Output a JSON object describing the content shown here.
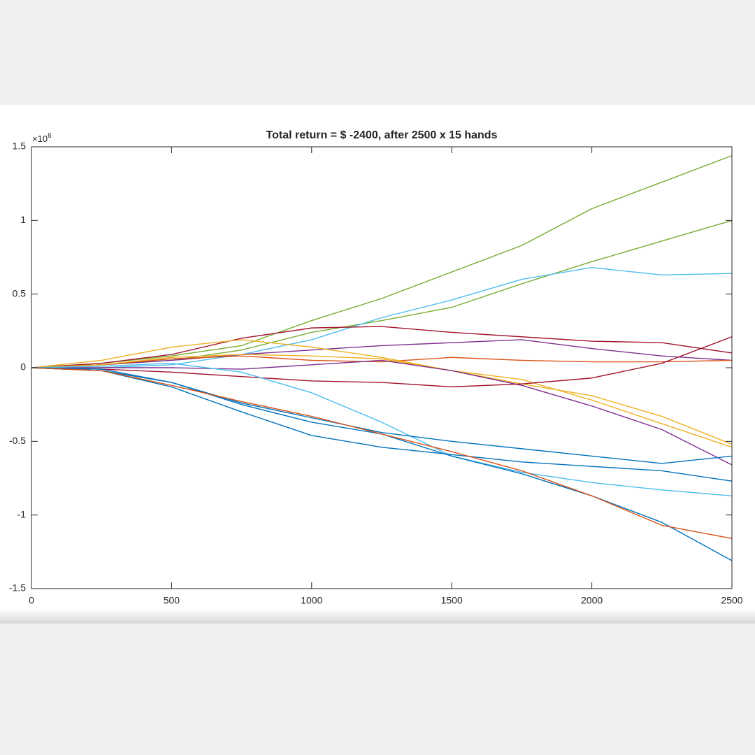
{
  "chart_data": {
    "type": "line",
    "title": "Total return = $ -2400, after 2500 x 15 hands",
    "y_multiplier": {
      "base": "×10",
      "power": "6"
    },
    "x": [
      0,
      250,
      500,
      750,
      1000,
      1250,
      1500,
      1750,
      2000,
      2250,
      2500
    ],
    "xlim": [
      0,
      2500
    ],
    "xticks": [
      0,
      500,
      1000,
      1500,
      2000,
      2500
    ],
    "ylim": [
      -1.5,
      1.5
    ],
    "yticks": [
      -1.5,
      -1,
      -0.5,
      0,
      0.5,
      1,
      1.5
    ],
    "grid": false,
    "series": [
      {
        "color": "#77AC30",
        "values": [
          0,
          0.03,
          0.08,
          0.15,
          0.32,
          0.47,
          0.65,
          0.83,
          1.08,
          1.26,
          1.44
        ]
      },
      {
        "color": "#77AC30",
        "values": [
          0,
          0.02,
          0.05,
          0.12,
          0.24,
          0.32,
          0.41,
          0.57,
          0.72,
          0.86,
          1.0
        ]
      },
      {
        "color": "#4DBEEE",
        "values": [
          0,
          0.0,
          0.02,
          0.09,
          0.19,
          0.34,
          0.46,
          0.6,
          0.68,
          0.63,
          0.64
        ]
      },
      {
        "color": "#A2142F",
        "values": [
          0,
          0.03,
          0.09,
          0.2,
          0.27,
          0.28,
          0.24,
          0.21,
          0.18,
          0.17,
          0.1
        ]
      },
      {
        "color": "#7E2F8E",
        "values": [
          0,
          0.02,
          0.05,
          0.09,
          0.12,
          0.15,
          0.17,
          0.19,
          0.13,
          0.08,
          0.05
        ]
      },
      {
        "color": "#D95319",
        "values": [
          0,
          0.02,
          0.06,
          0.08,
          0.05,
          0.04,
          0.07,
          0.05,
          0.04,
          0.04,
          0.05
        ]
      },
      {
        "color": "#EDB120",
        "values": [
          0,
          0.05,
          0.14,
          0.19,
          0.14,
          0.07,
          -0.02,
          -0.11,
          -0.19,
          -0.33,
          -0.52
        ]
      },
      {
        "color": "#EDB120",
        "values": [
          0,
          0.02,
          0.07,
          0.09,
          0.08,
          0.06,
          -0.02,
          -0.08,
          -0.22,
          -0.38,
          -0.54
        ]
      },
      {
        "color": "#7E2F8E",
        "values": [
          0,
          0.0,
          0.0,
          -0.01,
          0.02,
          0.05,
          -0.02,
          -0.12,
          -0.26,
          -0.42,
          -0.66
        ]
      },
      {
        "color": "#A2142F",
        "values": [
          0,
          -0.01,
          -0.03,
          -0.06,
          -0.09,
          -0.1,
          -0.13,
          -0.11,
          -0.07,
          0.03,
          0.21
        ]
      },
      {
        "color": "#4DBEEE",
        "values": [
          0,
          0.01,
          0.03,
          -0.03,
          -0.17,
          -0.37,
          -0.6,
          -0.71,
          -0.78,
          -0.83,
          -0.87
        ]
      },
      {
        "color": "#0072BD",
        "values": [
          0,
          -0.02,
          -0.1,
          -0.24,
          -0.34,
          -0.44,
          -0.5,
          -0.55,
          -0.6,
          -0.65,
          -0.6
        ]
      },
      {
        "color": "#0072BD",
        "values": [
          0,
          -0.02,
          -0.13,
          -0.3,
          -0.46,
          -0.54,
          -0.59,
          -0.64,
          -0.67,
          -0.7,
          -0.77
        ]
      },
      {
        "color": "#0072BD",
        "values": [
          0,
          -0.01,
          -0.1,
          -0.25,
          -0.37,
          -0.45,
          -0.6,
          -0.72,
          -0.87,
          -1.05,
          -1.31
        ]
      },
      {
        "color": "#D95319",
        "values": [
          0,
          -0.02,
          -0.12,
          -0.23,
          -0.33,
          -0.45,
          -0.57,
          -0.7,
          -0.87,
          -1.07,
          -1.16
        ]
      }
    ]
  }
}
